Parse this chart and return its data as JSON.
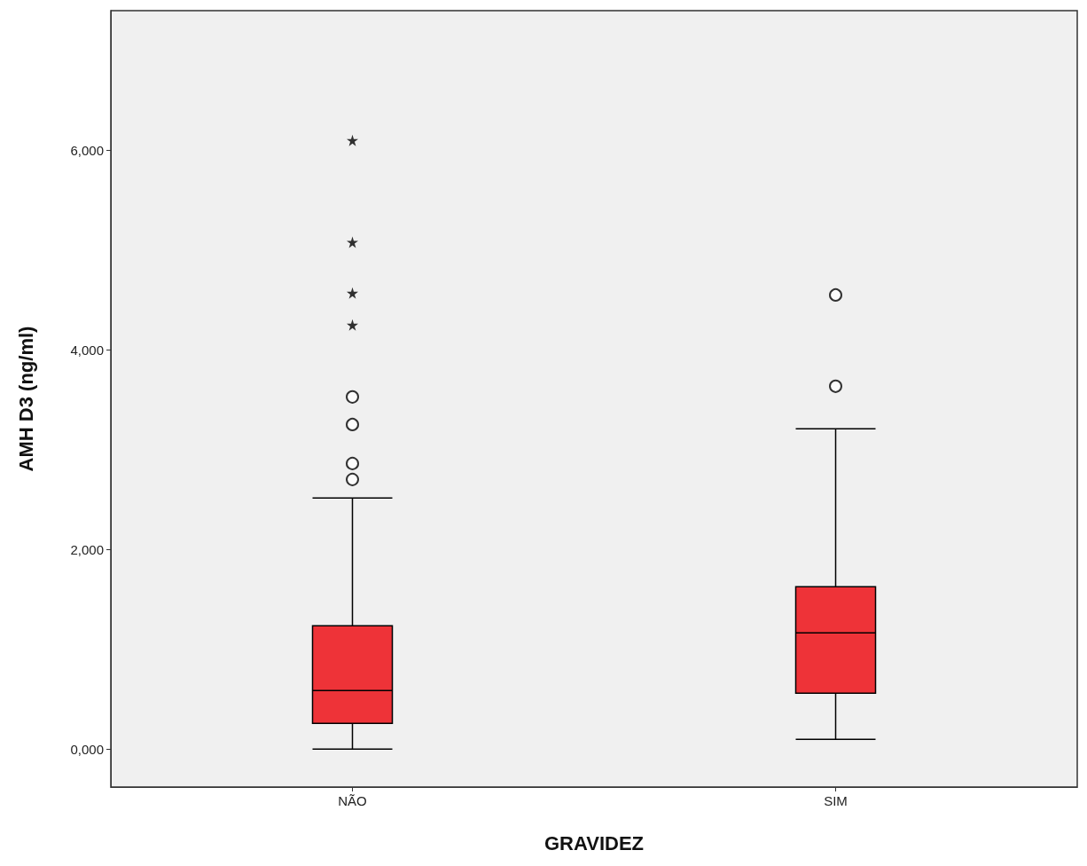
{
  "chart_data": {
    "type": "box",
    "xlabel": "GRAVIDEZ",
    "ylabel": "AMH D3 (ng/ml)",
    "categories": [
      "NÃO",
      "SIM"
    ],
    "color": "#ee3338",
    "boxes": [
      {
        "low": 0,
        "q1": 258,
        "median": 587,
        "q3": 1236,
        "high": 2516,
        "outliers": [
          2702,
          2862,
          3253,
          3529
        ]
      },
      {
        "low": 98,
        "q1": 560,
        "median": 1164,
        "q3": 1627,
        "high": 3209,
        "outliers": [
          3636,
          4551
        ]
      }
    ],
    "series": [
      {
        "type": "scatter",
        "marker": "star",
        "color": "#000000",
        "x": [
          "NÃO",
          "NÃO",
          "NÃO",
          "NÃO"
        ],
        "values": [
          4250,
          4570,
          5080,
          6100
        ]
      }
    ],
    "ylim": [
      -380,
      7400
    ],
    "yticks": [
      {
        "value": 0,
        "label": "0,000"
      },
      {
        "value": 2000,
        "label": "2,000"
      },
      {
        "value": 4000,
        "label": "4,000"
      },
      {
        "value": 6000,
        "label": "6,000"
      }
    ],
    "grid": false
  }
}
